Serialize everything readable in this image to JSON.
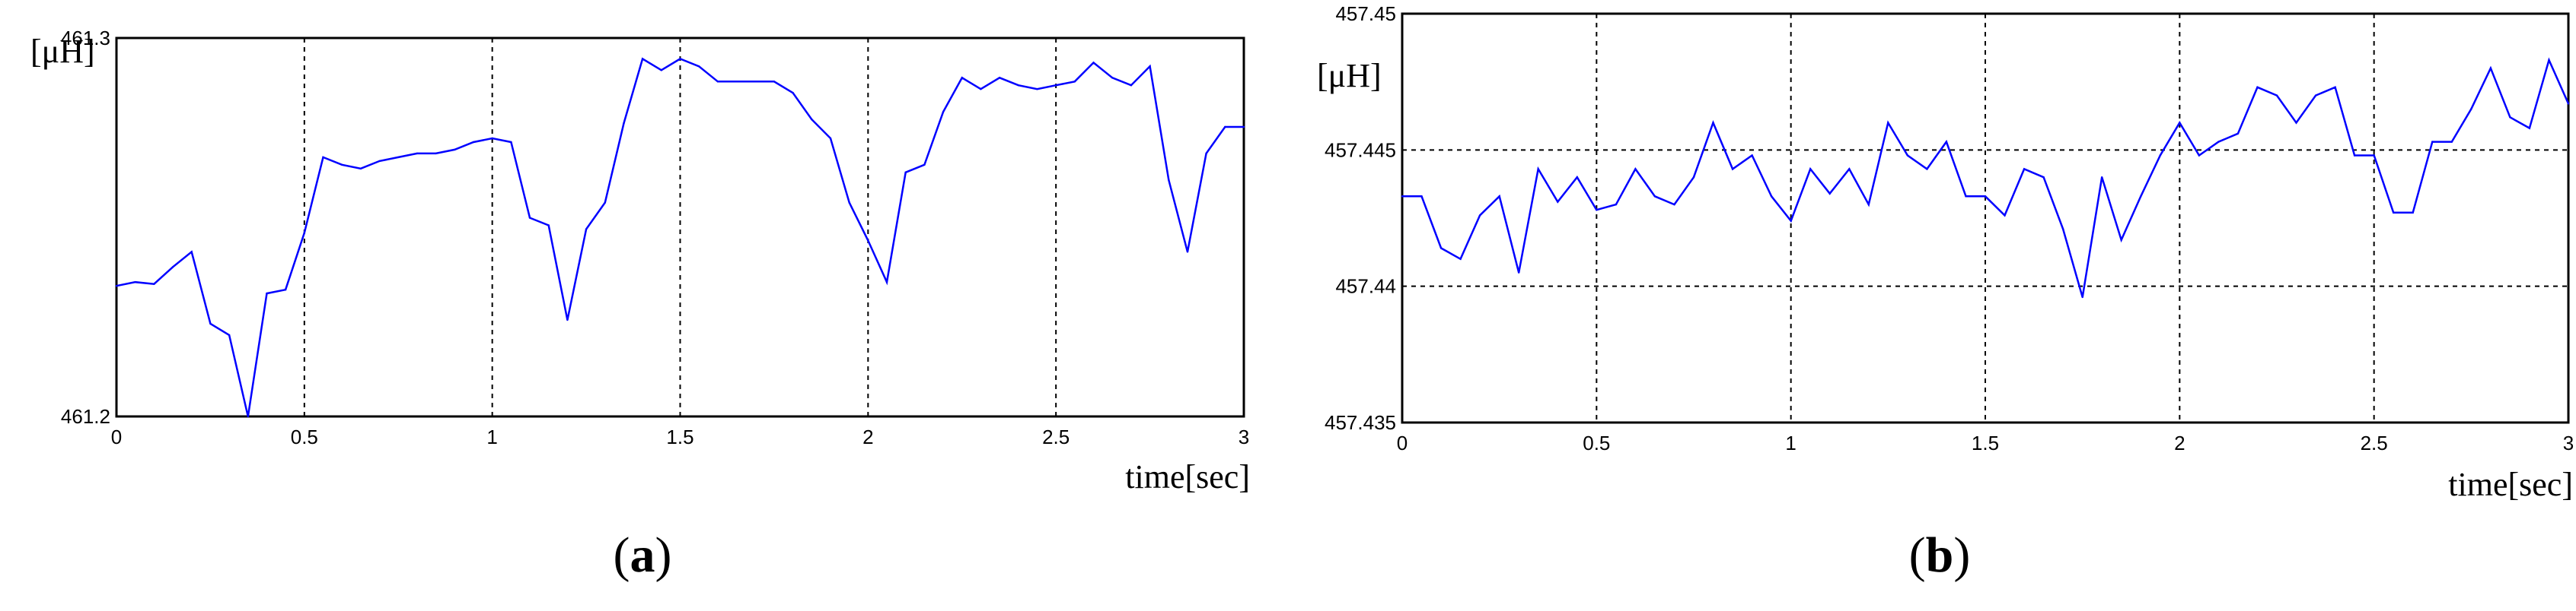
{
  "chart_data": [
    {
      "type": "line",
      "panel_label": "a",
      "y_unit_label": "[μH]",
      "xlabel": "time[sec]",
      "xlim": [
        0,
        3
      ],
      "ylim": [
        461.2,
        461.3
      ],
      "x_ticks": [
        "0",
        "0.5",
        "1",
        "1.5",
        "2",
        "2.5",
        "3"
      ],
      "y_ticks": [
        "461.2",
        "461.3"
      ],
      "grid": true,
      "line_color": "#0000ff",
      "x": [
        0,
        0.05,
        0.1,
        0.15,
        0.2,
        0.25,
        0.3,
        0.35,
        0.4,
        0.45,
        0.5,
        0.55,
        0.6,
        0.65,
        0.7,
        0.75,
        0.8,
        0.85,
        0.9,
        0.95,
        1.0,
        1.05,
        1.1,
        1.15,
        1.2,
        1.25,
        1.3,
        1.35,
        1.4,
        1.45,
        1.5,
        1.55,
        1.6,
        1.65,
        1.7,
        1.75,
        1.8,
        1.85,
        1.9,
        1.95,
        2.0,
        2.05,
        2.1,
        2.15,
        2.2,
        2.25,
        2.3,
        2.35,
        2.4,
        2.45,
        2.5,
        2.55,
        2.6,
        2.65,
        2.7,
        2.75,
        2.8,
        2.85,
        2.9,
        2.95,
        3.0
      ],
      "y": [
        461.2345,
        461.2355,
        461.235,
        461.2395,
        461.2435,
        461.2245,
        461.2215,
        461.2,
        461.2325,
        461.2335,
        461.2485,
        461.2685,
        461.2665,
        461.2655,
        461.2675,
        461.2685,
        461.2695,
        461.2695,
        461.2705,
        461.2725,
        461.2735,
        461.2725,
        461.2525,
        461.2505,
        461.2255,
        461.2495,
        461.2565,
        461.2775,
        461.2945,
        461.2915,
        461.2945,
        461.2925,
        461.2885,
        461.2885,
        461.2885,
        461.2885,
        461.2855,
        461.2785,
        461.2735,
        461.2565,
        461.2465,
        461.2355,
        461.2645,
        461.2665,
        461.2805,
        461.2895,
        461.2865,
        461.2895,
        461.2875,
        461.2865,
        461.2875,
        461.2885,
        461.2935,
        461.2895,
        461.2875,
        461.2925,
        461.2625,
        461.2435,
        461.2695,
        461.2765,
        461.2765
      ]
    },
    {
      "type": "line",
      "panel_label": "b",
      "y_unit_label": "[μH]",
      "xlabel": "time[sec]",
      "xlim": [
        0,
        3
      ],
      "ylim": [
        457.435,
        457.45
      ],
      "x_ticks": [
        "0",
        "0.5",
        "1",
        "1.5",
        "2",
        "2.5",
        "3"
      ],
      "y_ticks": [
        "457.435",
        "457.44",
        "457.445",
        "457.45"
      ],
      "grid": true,
      "line_color": "#0000ff",
      "x": [
        0,
        0.05,
        0.1,
        0.15,
        0.2,
        0.25,
        0.3,
        0.35,
        0.4,
        0.45,
        0.5,
        0.55,
        0.6,
        0.65,
        0.7,
        0.75,
        0.8,
        0.85,
        0.9,
        0.95,
        1.0,
        1.05,
        1.1,
        1.15,
        1.2,
        1.25,
        1.3,
        1.35,
        1.4,
        1.45,
        1.5,
        1.55,
        1.6,
        1.65,
        1.7,
        1.75,
        1.8,
        1.85,
        1.9,
        1.95,
        2.0,
        2.05,
        2.1,
        2.15,
        2.2,
        2.25,
        2.3,
        2.35,
        2.4,
        2.45,
        2.5,
        2.55,
        2.6,
        2.65,
        2.7,
        2.75,
        2.8,
        2.85,
        2.9,
        2.95,
        3.0
      ],
      "y": [
        457.4433,
        457.4433,
        457.4414,
        457.441,
        457.4426,
        457.4433,
        457.4405,
        457.4443,
        457.4431,
        457.444,
        457.4428,
        457.443,
        457.4443,
        457.4433,
        457.443,
        457.444,
        457.446,
        457.4443,
        457.4448,
        457.4433,
        457.4424,
        457.4443,
        457.4434,
        457.4443,
        457.443,
        457.446,
        457.4448,
        457.4443,
        457.4453,
        457.4433,
        457.4433,
        457.4426,
        457.4443,
        457.444,
        457.4421,
        457.4396,
        457.444,
        457.4417,
        457.4433,
        457.4448,
        457.446,
        457.4448,
        457.4453,
        457.4456,
        457.4473,
        457.447,
        457.446,
        457.447,
        457.4473,
        457.4448,
        457.4448,
        457.4427,
        457.4427,
        457.4453,
        457.4453,
        457.4465,
        457.448,
        457.4462,
        457.4458,
        457.4483,
        457.4467
      ]
    }
  ]
}
